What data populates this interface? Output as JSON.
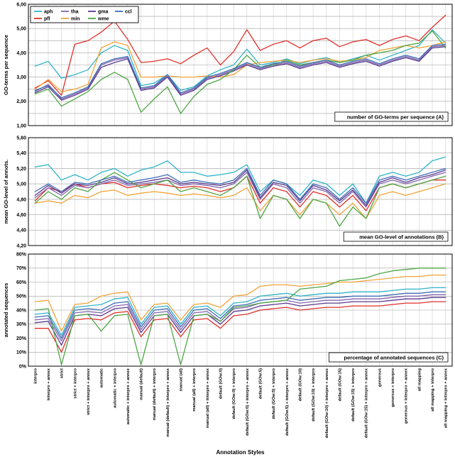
{
  "figure": {
    "xlabel": "Annotation Styles",
    "legend": {
      "position": "top-left",
      "rows": [
        [
          "aph",
          "tha",
          "gma",
          "ccl"
        ],
        [
          "pfl",
          "min",
          "wme"
        ]
      ]
    }
  },
  "categories": [
    "interpro",
    "interpro + annex",
    "strict",
    "strict + interpro",
    "strict + interpro + annex",
    "automatic",
    "automatic + interpro",
    "automatic + interpro + annex",
    "manual (default)",
    "manual (default) + interpro",
    "manual (default) + interpro + annex",
    "manual (all)",
    "manual (all) + interpro",
    "manual (all) + interpro + annex",
    "default (GOw:0)",
    "default (GOw:0) + interpro",
    "default (GOw:0) + interpro + annex",
    "default (GOw:5)",
    "default (GOw:5) + interpro",
    "default (GOw:5) + interpro + annex",
    "default (GOw:10)",
    "default (GOw:10) + interpro",
    "default (GOw:10) + interpro + annex",
    "default (GOw:15)",
    "default (GOw:15) + interpro",
    "default (GOw:15) + interpro + annex",
    "generous",
    "generous + interpro",
    "generous + interpro + annex",
    "all mapping",
    "all mapping + interpro",
    "all mapping + interpro + annex"
  ],
  "chart_data": [
    {
      "id": "A",
      "type": "line",
      "caption": "number of GO-terms per sequence (A)",
      "ylabel": "GO-terms per sequence",
      "ylim": [
        1.0,
        6.0
      ],
      "ytick": 1.0,
      "ygrid": 0.5,
      "yformat": "comma2",
      "series": [
        {
          "name": "aph",
          "color": "#2fb4c9",
          "values": [
            3.45,
            3.65,
            2.95,
            3.1,
            3.3,
            4.0,
            4.3,
            4.1,
            2.65,
            2.75,
            3.1,
            2.45,
            2.6,
            3.05,
            3.3,
            3.5,
            4.15,
            3.5,
            3.6,
            3.75,
            3.55,
            3.7,
            3.8,
            3.6,
            3.75,
            3.9,
            3.7,
            3.9,
            4.1,
            4.3,
            4.95,
            4.4
          ]
        },
        {
          "name": "pfl",
          "color": "#e0312b",
          "values": [
            2.55,
            2.85,
            2.25,
            4.35,
            4.5,
            4.85,
            5.3,
            4.55,
            3.6,
            3.65,
            3.75,
            3.55,
            3.9,
            4.2,
            3.5,
            4.05,
            4.95,
            4.1,
            4.35,
            4.5,
            4.2,
            4.5,
            4.6,
            4.25,
            4.45,
            4.55,
            4.3,
            4.55,
            4.7,
            4.5,
            5.05,
            5.55
          ]
        },
        {
          "name": "tha",
          "color": "#8566ae",
          "values": [
            2.4,
            2.7,
            2.1,
            2.3,
            2.55,
            3.5,
            3.7,
            3.8,
            2.5,
            2.6,
            3.05,
            2.3,
            2.5,
            2.95,
            3.1,
            3.3,
            3.55,
            3.35,
            3.5,
            3.6,
            3.4,
            3.55,
            3.65,
            3.45,
            3.6,
            3.7,
            3.5,
            3.7,
            3.85,
            3.7,
            4.25,
            4.3
          ]
        },
        {
          "name": "min",
          "color": "#f2a33a",
          "values": [
            2.5,
            2.9,
            2.4,
            2.5,
            2.7,
            4.2,
            4.45,
            4.3,
            3.0,
            3.0,
            3.05,
            3.0,
            3.0,
            3.05,
            3.0,
            3.1,
            3.5,
            3.6,
            3.65,
            3.7,
            3.6,
            3.7,
            3.75,
            3.65,
            3.7,
            3.8,
            4.1,
            4.2,
            4.3,
            4.2,
            4.3,
            4.45
          ]
        },
        {
          "name": "gma",
          "color": "#5a3a8e",
          "values": [
            2.35,
            2.6,
            2.05,
            2.25,
            2.5,
            3.4,
            3.6,
            3.75,
            2.45,
            2.55,
            3.0,
            2.25,
            2.45,
            2.9,
            3.05,
            3.25,
            3.5,
            3.3,
            3.45,
            3.55,
            3.35,
            3.5,
            3.6,
            3.4,
            3.55,
            3.65,
            3.45,
            3.65,
            3.8,
            3.65,
            4.2,
            4.25
          ]
        },
        {
          "name": "wme",
          "color": "#4fa645",
          "values": [
            2.3,
            2.5,
            1.8,
            2.1,
            2.4,
            2.9,
            3.2,
            2.9,
            1.55,
            2.1,
            2.6,
            1.5,
            2.2,
            2.7,
            2.9,
            3.3,
            3.9,
            3.4,
            3.5,
            3.7,
            3.5,
            3.6,
            3.7,
            3.6,
            3.7,
            3.9,
            4.0,
            4.1,
            4.3,
            4.4,
            4.9,
            4.2
          ]
        },
        {
          "name": "ccl",
          "color": "#3d6eb5",
          "values": [
            2.45,
            2.65,
            2.15,
            2.35,
            2.6,
            3.55,
            3.75,
            3.85,
            2.55,
            2.65,
            3.1,
            2.35,
            2.55,
            3.0,
            3.15,
            3.35,
            3.6,
            3.4,
            3.55,
            3.65,
            3.45,
            3.6,
            3.7,
            3.5,
            3.65,
            3.75,
            3.55,
            3.75,
            3.9,
            3.75,
            4.3,
            4.35
          ]
        }
      ]
    },
    {
      "id": "B",
      "type": "line",
      "caption": "mean GO-level of annotations (B)",
      "ylabel": "mean GO-level of annots.",
      "ylim": [
        4.2,
        5.6
      ],
      "ytick": 0.2,
      "ygrid": 0.2,
      "yformat": "comma2",
      "series": [
        {
          "name": "aph",
          "color": "#2fb4c9",
          "values": [
            5.22,
            5.25,
            5.05,
            5.12,
            5.05,
            5.15,
            5.2,
            5.1,
            5.18,
            5.22,
            5.3,
            5.15,
            5.15,
            5.1,
            5.12,
            5.15,
            5.25,
            4.9,
            5.05,
            5.0,
            4.85,
            5.05,
            5.0,
            4.85,
            5.0,
            4.75,
            5.1,
            5.15,
            5.1,
            5.15,
            5.3,
            5.35
          ]
        },
        {
          "name": "pfl",
          "color": "#e0312b",
          "values": [
            4.78,
            4.95,
            4.9,
            5.0,
            4.95,
            5.0,
            5.02,
            4.95,
            4.98,
            5.0,
            4.98,
            4.95,
            4.97,
            4.95,
            4.9,
            4.95,
            5.1,
            4.75,
            4.95,
            4.9,
            4.7,
            4.9,
            4.85,
            4.7,
            4.85,
            4.65,
            4.95,
            5.0,
            4.95,
            5.0,
            5.05,
            5.05
          ]
        },
        {
          "name": "tha",
          "color": "#8566ae",
          "values": [
            4.82,
            4.95,
            4.85,
            4.98,
            4.95,
            5.0,
            5.05,
            4.98,
            5.0,
            5.02,
            5.05,
            4.98,
            5.0,
            4.98,
            4.95,
            5.0,
            5.15,
            4.8,
            5.0,
            4.95,
            4.75,
            4.95,
            4.9,
            4.75,
            4.9,
            4.7,
            5.0,
            5.05,
            5.0,
            5.05,
            5.1,
            5.15
          ]
        },
        {
          "name": "min",
          "color": "#f2a33a",
          "values": [
            4.75,
            4.78,
            4.75,
            4.85,
            4.82,
            4.9,
            4.92,
            4.85,
            4.88,
            4.9,
            4.88,
            4.85,
            4.87,
            4.85,
            4.82,
            4.85,
            4.95,
            4.65,
            4.85,
            4.8,
            4.6,
            4.8,
            4.75,
            4.6,
            4.75,
            4.55,
            4.85,
            4.9,
            4.85,
            4.9,
            4.95,
            5.0
          ]
        },
        {
          "name": "gma",
          "color": "#5a3a8e",
          "values": [
            4.85,
            4.98,
            4.88,
            5.0,
            4.98,
            5.02,
            5.08,
            5.0,
            5.02,
            5.05,
            5.08,
            5.0,
            5.02,
            5.0,
            4.98,
            5.02,
            5.18,
            4.82,
            5.02,
            4.98,
            4.78,
            4.98,
            4.92,
            4.78,
            4.92,
            4.72,
            5.02,
            5.08,
            5.02,
            5.08,
            5.12,
            5.18
          ]
        },
        {
          "name": "wme",
          "color": "#4fa645",
          "values": [
            4.75,
            4.9,
            4.8,
            4.95,
            4.9,
            5.05,
            5.15,
            5.05,
            4.95,
            5.0,
            5.05,
            4.9,
            4.95,
            4.9,
            4.85,
            4.95,
            5.1,
            4.55,
            4.85,
            4.8,
            4.55,
            4.8,
            4.75,
            4.45,
            4.7,
            4.55,
            4.95,
            5.0,
            4.95,
            5.0,
            5.05,
            5.1
          ]
        },
        {
          "name": "ccl",
          "color": "#3d6eb5",
          "values": [
            4.9,
            5.0,
            4.9,
            5.02,
            5.0,
            5.05,
            5.1,
            5.02,
            5.05,
            5.08,
            5.12,
            5.02,
            5.05,
            5.02,
            5.0,
            5.05,
            5.2,
            4.85,
            5.05,
            5.0,
            4.8,
            5.0,
            4.95,
            4.8,
            4.95,
            4.75,
            5.05,
            5.1,
            5.05,
            5.1,
            5.15,
            5.2
          ]
        }
      ]
    },
    {
      "id": "C",
      "type": "line",
      "caption": "percentage of annotated sequences (C)",
      "ylabel": "annotated sequences",
      "ylim": [
        0,
        80
      ],
      "ytick": 10,
      "ygrid": 10,
      "yformat": "pct",
      "series": [
        {
          "name": "aph",
          "color": "#2fb4c9",
          "values": [
            37,
            38,
            22,
            42,
            43,
            44,
            48,
            49,
            30,
            42,
            43,
            30,
            42,
            43,
            36,
            45,
            46,
            50,
            51,
            52,
            50,
            51,
            52,
            52,
            53,
            53,
            53,
            54,
            55,
            55,
            56,
            56
          ]
        },
        {
          "name": "pfl",
          "color": "#e0312b",
          "values": [
            27,
            27,
            10,
            33,
            34,
            33,
            38,
            39,
            21,
            33,
            34,
            21,
            33,
            34,
            27,
            36,
            37,
            40,
            41,
            42,
            40,
            41,
            42,
            42,
            43,
            43,
            43,
            44,
            45,
            45,
            46,
            46
          ]
        },
        {
          "name": "tha",
          "color": "#8566ae",
          "values": [
            33,
            34,
            18,
            38,
            39,
            38,
            43,
            44,
            26,
            38,
            39,
            26,
            38,
            39,
            32,
            41,
            42,
            45,
            46,
            47,
            45,
            46,
            47,
            47,
            48,
            48,
            48,
            49,
            50,
            50,
            51,
            51
          ]
        },
        {
          "name": "min",
          "color": "#f2a33a",
          "values": [
            46,
            47,
            25,
            44,
            45,
            50,
            52,
            53,
            33,
            44,
            45,
            33,
            44,
            45,
            42,
            50,
            51,
            57,
            58,
            58,
            57,
            58,
            59,
            60,
            60,
            61,
            62,
            63,
            64,
            64,
            65,
            65
          ]
        },
        {
          "name": "gma",
          "color": "#5a3a8e",
          "values": [
            31,
            32,
            15,
            36,
            37,
            36,
            41,
            42,
            24,
            36,
            37,
            24,
            36,
            37,
            30,
            39,
            40,
            43,
            44,
            45,
            43,
            44,
            45,
            45,
            46,
            46,
            46,
            47,
            48,
            48,
            49,
            49
          ]
        },
        {
          "name": "wme",
          "color": "#4fa645",
          "values": [
            40,
            41,
            1,
            36,
            37,
            25,
            36,
            37,
            1,
            36,
            37,
            1,
            36,
            37,
            32,
            42,
            43,
            45,
            46,
            47,
            55,
            56,
            57,
            61,
            62,
            63,
            66,
            68,
            69,
            70,
            70,
            70
          ]
        },
        {
          "name": "ccl",
          "color": "#3d6eb5",
          "values": [
            35,
            36,
            20,
            40,
            41,
            40,
            45,
            46,
            28,
            40,
            41,
            28,
            40,
            41,
            34,
            43,
            44,
            47,
            48,
            49,
            47,
            48,
            49,
            49,
            50,
            50,
            50,
            51,
            52,
            52,
            53,
            53
          ]
        }
      ]
    }
  ]
}
